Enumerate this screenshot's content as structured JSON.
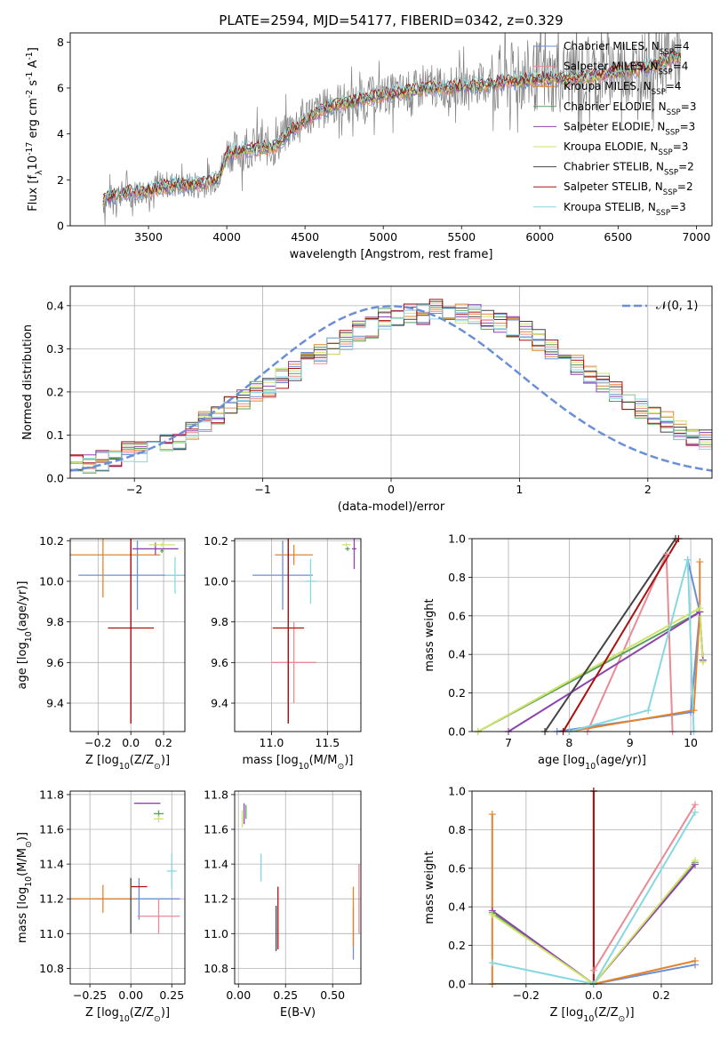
{
  "figure_title": "PLATE=2594, MJD=54177, FIBERID=0342, z=0.329",
  "series_styles": [
    {
      "name": "Chabrier MILES, N$_{SSP}$=4",
      "color": "#6a8fd6"
    },
    {
      "name": "Salpeter MILES, N$_{SSP}$=4",
      "color": "#e98a95"
    },
    {
      "name": "Kroupa MILES, N$_{SSP}$=4",
      "color": "#e3842d"
    },
    {
      "name": "Chabrier ELODIE, N$_{SSP}$=3",
      "color": "#5aa05a"
    },
    {
      "name": "Salpeter ELODIE, N$_{SSP}$=3",
      "color": "#8e44ad"
    },
    {
      "name": "Kroupa ELODIE, N$_{SSP}$=3",
      "color": "#cfe36a"
    },
    {
      "name": "Chabrier STELIB, N$_{SSP}$=2",
      "color": "#444444"
    },
    {
      "name": "Salpeter STELIB, N$_{SSP}$=2",
      "color": "#aa1111"
    },
    {
      "name": "Kroupa STELIB, N$_{SSP}$=3",
      "color": "#86d8e0"
    }
  ],
  "chart_data": [
    {
      "id": "spectrum",
      "type": "line",
      "title": "PLATE=2594, MJD=54177, FIBERID=0342, z=0.329",
      "xlabel": "wavelength [Angstrom, rest frame]",
      "ylabel": "Flux [f$_\\lambda$10$^{-17}$ erg cm$^{-2}$ s$^{-1}$ A$^{-1}$]",
      "xlim": [
        3000,
        7100
      ],
      "ylim": [
        0,
        8.4
      ],
      "xticks": [
        3500,
        4000,
        4500,
        5000,
        5500,
        6000,
        6500,
        7000
      ],
      "yticks": [
        0,
        2,
        4,
        6,
        8
      ],
      "legend": "upper right",
      "data_color": "#808080",
      "data_points": [
        [
          3210,
          1.0
        ],
        [
          3300,
          1.4
        ],
        [
          3400,
          1.4
        ],
        [
          3500,
          1.6
        ],
        [
          3600,
          1.8
        ],
        [
          3700,
          1.8
        ],
        [
          3800,
          1.7
        ],
        [
          3900,
          1.9
        ],
        [
          3950,
          2.2
        ],
        [
          4000,
          3.2
        ],
        [
          4100,
          3.3
        ],
        [
          4200,
          3.5
        ],
        [
          4300,
          3.4
        ],
        [
          4400,
          4.2
        ],
        [
          4500,
          4.8
        ],
        [
          4600,
          5.0
        ],
        [
          4700,
          5.4
        ],
        [
          4800,
          5.3
        ],
        [
          4900,
          5.6
        ],
        [
          5000,
          5.7
        ],
        [
          5100,
          5.8
        ],
        [
          5200,
          5.9
        ],
        [
          5300,
          6.0
        ],
        [
          5400,
          6.0
        ],
        [
          5500,
          6.1
        ],
        [
          5600,
          6.2
        ],
        [
          5700,
          6.3
        ],
        [
          5800,
          6.4
        ],
        [
          5900,
          6.5
        ],
        [
          6000,
          6.5
        ],
        [
          6100,
          6.4
        ],
        [
          6200,
          6.5
        ],
        [
          6300,
          6.6
        ],
        [
          6400,
          6.7
        ],
        [
          6500,
          6.8
        ],
        [
          6600,
          6.8
        ],
        [
          6700,
          7.0
        ],
        [
          6800,
          7.3
        ],
        [
          6900,
          7.5
        ]
      ],
      "model_points": [
        [
          3210,
          1.1
        ],
        [
          3300,
          1.4
        ],
        [
          3400,
          1.5
        ],
        [
          3500,
          1.5
        ],
        [
          3600,
          1.7
        ],
        [
          3700,
          1.8
        ],
        [
          3800,
          1.8
        ],
        [
          3900,
          1.9
        ],
        [
          3950,
          2.1
        ],
        [
          4000,
          3.1
        ],
        [
          4100,
          3.3
        ],
        [
          4200,
          3.4
        ],
        [
          4300,
          3.4
        ],
        [
          4400,
          4.1
        ],
        [
          4500,
          4.6
        ],
        [
          4600,
          5.0
        ],
        [
          4700,
          5.3
        ],
        [
          4800,
          5.4
        ],
        [
          4900,
          5.6
        ],
        [
          5000,
          5.7
        ],
        [
          5100,
          5.8
        ],
        [
          5200,
          5.9
        ],
        [
          5300,
          6.0
        ],
        [
          5400,
          6.0
        ],
        [
          5500,
          6.1
        ],
        [
          5600,
          6.1
        ],
        [
          5700,
          6.2
        ],
        [
          5800,
          6.3
        ],
        [
          5900,
          6.3
        ],
        [
          6000,
          6.4
        ],
        [
          6100,
          6.4
        ],
        [
          6200,
          6.4
        ],
        [
          6300,
          6.5
        ],
        [
          6400,
          6.6
        ],
        [
          6500,
          6.7
        ],
        [
          6600,
          6.8
        ],
        [
          6700,
          6.9
        ],
        [
          6800,
          7.2
        ],
        [
          6900,
          7.4
        ]
      ],
      "series": [
        {
          "name": "Chabrier MILES, N$_{SSP}$=4",
          "color": "#6a8fd6"
        },
        {
          "name": "Salpeter MILES, N$_{SSP}$=4",
          "color": "#e98a95"
        },
        {
          "name": "Kroupa MILES, N$_{SSP}$=4",
          "color": "#e3842d"
        },
        {
          "name": "Chabrier ELODIE, N$_{SSP}$=3",
          "color": "#5aa05a"
        },
        {
          "name": "Salpeter ELODIE, N$_{SSP}$=3",
          "color": "#8e44ad"
        },
        {
          "name": "Kroupa ELODIE, N$_{SSP}$=3",
          "color": "#cfe36a"
        },
        {
          "name": "Chabrier STELIB, N$_{SSP}$=2",
          "color": "#444444"
        },
        {
          "name": "Salpeter STELIB, N$_{SSP}$=2",
          "color": "#aa1111"
        },
        {
          "name": "Kroupa STELIB, N$_{SSP}$=3",
          "color": "#86d8e0"
        }
      ]
    },
    {
      "id": "residuals",
      "type": "line",
      "xlabel": "(data-model)/error",
      "ylabel": "Normed distribution",
      "xlim": [
        -2.5,
        2.5
      ],
      "ylim": [
        0,
        0.445
      ],
      "xticks": [
        -2,
        -1,
        0,
        1,
        2
      ],
      "yticks": [
        0.0,
        0.1,
        0.2,
        0.3,
        0.4
      ],
      "grid": true,
      "legend": "upper right",
      "reference_curve": {
        "name": "$\\mathcal{N}(0,1)$",
        "color": "#6a8fd6",
        "mean": 0,
        "sigma": 1
      },
      "histogram": {
        "bin_width": 0.1,
        "bin_start": -2.5,
        "base_values": [
          0.03,
          0.03,
          0.04,
          0.05,
          0.06,
          0.06,
          0.07,
          0.08,
          0.09,
          0.11,
          0.13,
          0.15,
          0.17,
          0.18,
          0.2,
          0.21,
          0.23,
          0.25,
          0.27,
          0.29,
          0.31,
          0.32,
          0.34,
          0.35,
          0.37,
          0.37,
          0.38,
          0.38,
          0.39,
          0.38,
          0.38,
          0.38,
          0.37,
          0.36,
          0.35,
          0.34,
          0.32,
          0.3,
          0.28,
          0.26,
          0.24,
          0.22,
          0.2,
          0.18,
          0.16,
          0.14,
          0.13,
          0.11,
          0.1,
          0.09
        ]
      }
    },
    {
      "id": "age-vs-Z",
      "type": "scatter",
      "xlabel": "Z [log$_{10}$(Z/Z$_\\odot$)]",
      "ylabel": "age  [log$_{10}$(age/yr)]",
      "xlim": [
        -0.37,
        0.33
      ],
      "ylim": [
        9.26,
        10.21
      ],
      "xticks": [
        -0.2,
        0.0,
        0.2
      ],
      "yticks": [
        9.4,
        9.6,
        9.8,
        10.0,
        10.2
      ],
      "grid": true,
      "points": [
        {
          "series": 0,
          "x": 0.04,
          "xerr": 0.36,
          "y": 10.03,
          "yerr": 0.17
        },
        {
          "series": 1,
          "x": 0.29,
          "xerr": 0.0,
          "y": 9.6,
          "yerr": 0.0
        },
        {
          "series": 2,
          "x": -0.17,
          "xerr": 0.35,
          "y": 10.13,
          "yerr": 0.21
        },
        {
          "series": 3,
          "x": 0.19,
          "xerr": 0.01,
          "y": 10.15,
          "yerr": 0.01
        },
        {
          "series": 4,
          "x": 0.15,
          "xerr": 0.14,
          "y": 10.16,
          "yerr": 0.03
        },
        {
          "series": 5,
          "x": 0.19,
          "xerr": 0.08,
          "y": 10.18,
          "yerr": 0.01
        },
        {
          "series": 6,
          "x": 0.0,
          "xerr": 0.0,
          "y": 9.77,
          "yerr": 0.47
        },
        {
          "series": 7,
          "x": 0.0,
          "xerr": 0.14,
          "y": 9.77,
          "yerr": 0.47
        },
        {
          "series": 8,
          "x": 0.27,
          "xerr": 0.06,
          "y": 10.03,
          "yerr": 0.09
        }
      ]
    },
    {
      "id": "age-vs-mass",
      "type": "scatter",
      "xlabel": "mass [log$_{10}$(M/M$_\\odot$)]",
      "ylabel": "",
      "xlim": [
        10.67,
        11.8
      ],
      "ylim": [
        9.26,
        10.21
      ],
      "xticks": [
        11.0,
        11.5
      ],
      "yticks": [
        9.4,
        9.6,
        9.8,
        10.0,
        10.2
      ],
      "grid": true,
      "points": [
        {
          "series": 0,
          "x": 11.1,
          "xerr": 0.27,
          "y": 10.03,
          "yerr": 0.17
        },
        {
          "series": 1,
          "x": 11.2,
          "xerr": 0.2,
          "y": 9.6,
          "yerr": 0.2
        },
        {
          "series": 2,
          "x": 11.2,
          "xerr": 0.17,
          "y": 10.13,
          "yerr": 0.05
        },
        {
          "series": 3,
          "x": 11.68,
          "xerr": 0.02,
          "y": 10.16,
          "yerr": 0.01
        },
        {
          "series": 4,
          "x": 11.74,
          "xerr": 0.02,
          "y": 10.16,
          "yerr": 0.1
        },
        {
          "series": 5,
          "x": 11.67,
          "xerr": 0.04,
          "y": 10.18,
          "yerr": 0.01
        },
        {
          "series": 6,
          "x": 11.15,
          "xerr": 0.0,
          "y": 9.77,
          "yerr": 0.47
        },
        {
          "series": 7,
          "x": 11.15,
          "xerr": 0.14,
          "y": 9.77,
          "yerr": 0.47
        },
        {
          "series": 8,
          "x": 11.35,
          "xerr": 0.05,
          "y": 10.0,
          "yerr": 0.11
        }
      ]
    },
    {
      "id": "weight-vs-age",
      "type": "line",
      "xlabel": "age  [log$_{10}$(age/yr)]",
      "ylabel": "mass weight",
      "xlim": [
        6.4,
        10.35
      ],
      "ylim": [
        0,
        1.0
      ],
      "xticks": [
        7,
        8,
        9,
        10
      ],
      "yticks": [
        0.0,
        0.2,
        0.4,
        0.6,
        0.8,
        1.0
      ],
      "grid": true,
      "lines": [
        {
          "series": 0,
          "x": [
            7.8,
            10.0,
            10.15,
            9.95
          ],
          "y": [
            0.0,
            0.1,
            0.62,
            0.89
          ]
        },
        {
          "series": 1,
          "x": [
            8.3,
            9.6,
            9.7
          ],
          "y": [
            0.0,
            0.92,
            0.0
          ]
        },
        {
          "series": 2,
          "x": [
            8.0,
            10.05,
            10.15,
            10.15
          ],
          "y": [
            0.0,
            0.11,
            0.62,
            0.88
          ]
        },
        {
          "series": 3,
          "x": [
            6.5,
            10.15,
            10.2
          ],
          "y": [
            0.0,
            0.62,
            0.37
          ]
        },
        {
          "series": 4,
          "x": [
            7.0,
            10.15,
            10.2
          ],
          "y": [
            0.0,
            0.62,
            0.37
          ]
        },
        {
          "series": 5,
          "x": [
            6.5,
            10.15,
            10.2
          ],
          "y": [
            0.0,
            0.64,
            0.36
          ]
        },
        {
          "series": 6,
          "x": [
            7.6,
            9.75
          ],
          "y": [
            0.0,
            1.0
          ]
        },
        {
          "series": 7,
          "x": [
            7.9,
            9.8
          ],
          "y": [
            0.0,
            1.0
          ]
        },
        {
          "series": 8,
          "x": [
            8.0,
            9.3,
            9.95,
            10.05
          ],
          "y": [
            0.0,
            0.11,
            0.89,
            0.0
          ]
        }
      ]
    },
    {
      "id": "mass-vs-Z",
      "type": "scatter",
      "xlabel": "Z [log$_{10}$(Z/Z$_\\odot$)]",
      "ylabel": "mass [log$_{10}$(M/M$_\\odot$)]",
      "xlim": [
        -0.37,
        0.33
      ],
      "ylim": [
        10.71,
        11.82
      ],
      "xticks": [
        -0.25,
        0.0,
        0.25
      ],
      "yticks": [
        10.8,
        11.0,
        11.2,
        11.4,
        11.6,
        11.8
      ],
      "grid": true,
      "points": [
        {
          "series": 0,
          "x": 0.05,
          "xerr": 0.25,
          "y": 11.2,
          "yerr": 0.12
        },
        {
          "series": 1,
          "x": 0.17,
          "xerr": 0.13,
          "y": 11.1,
          "yerr": 0.1
        },
        {
          "series": 2,
          "x": -0.17,
          "xerr": 0.2,
          "y": 11.2,
          "yerr": 0.08
        },
        {
          "series": 3,
          "x": 0.17,
          "xerr": 0.03,
          "y": 11.69,
          "yerr": 0.02
        },
        {
          "series": 4,
          "x": 0.1,
          "xerr": 0.08,
          "y": 11.75,
          "yerr": 0.0
        },
        {
          "series": 5,
          "x": 0.17,
          "xerr": 0.03,
          "y": 11.66,
          "yerr": 0.02
        },
        {
          "series": 6,
          "x": 0.0,
          "xerr": 0.0,
          "y": 11.16,
          "yerr": 0.16
        },
        {
          "series": 7,
          "x": 0.05,
          "xerr": 0.05,
          "y": 11.27,
          "yerr": 0.0
        },
        {
          "series": 8,
          "x": 0.25,
          "xerr": 0.03,
          "y": 11.36,
          "yerr": 0.1
        }
      ]
    },
    {
      "id": "mass-vs-EBV",
      "type": "scatter",
      "xlabel": "E(B-V)",
      "ylabel": "",
      "xlim": [
        -0.02,
        0.65
      ],
      "ylim": [
        10.71,
        11.82
      ],
      "xticks": [
        0.0,
        0.25,
        0.5
      ],
      "yticks": [
        10.8,
        11.0,
        11.2,
        11.4,
        11.6,
        11.8
      ],
      "grid": true,
      "points": [
        {
          "series": 0,
          "x": 0.61,
          "xerr": 0.0,
          "y": 11.0,
          "yerr": 0.15
        },
        {
          "series": 1,
          "x": 0.64,
          "xerr": 0.0,
          "y": 11.2,
          "yerr": 0.2
        },
        {
          "series": 2,
          "x": 0.61,
          "xerr": 0.0,
          "y": 11.1,
          "yerr": 0.17
        },
        {
          "series": 3,
          "x": 0.04,
          "xerr": 0.0,
          "y": 11.7,
          "yerr": 0.04
        },
        {
          "series": 4,
          "x": 0.03,
          "xerr": 0.0,
          "y": 11.69,
          "yerr": 0.06
        },
        {
          "series": 5,
          "x": 0.02,
          "xerr": 0.0,
          "y": 11.66,
          "yerr": 0.05
        },
        {
          "series": 6,
          "x": 0.2,
          "xerr": 0.0,
          "y": 11.03,
          "yerr": 0.13
        },
        {
          "series": 7,
          "x": 0.21,
          "xerr": 0.0,
          "y": 11.09,
          "yerr": 0.18
        },
        {
          "series": 8,
          "x": 0.12,
          "xerr": 0.0,
          "y": 11.38,
          "yerr": 0.08
        }
      ]
    },
    {
      "id": "weight-vs-Z",
      "type": "line",
      "xlabel": "Z [log$_{10}$(Z/Z$_\\odot$)]",
      "ylabel": "mass weight",
      "xlim": [
        -0.36,
        0.35
      ],
      "ylim": [
        0,
        1.0
      ],
      "xticks": [
        -0.2,
        0.0,
        0.2
      ],
      "yticks": [
        0.0,
        0.2,
        0.4,
        0.6,
        0.8,
        1.0
      ],
      "grid": true,
      "lines": [
        {
          "series": 0,
          "x": [
            -0.3,
            0.0,
            0.3
          ],
          "y": [
            0.0,
            0.0,
            0.1
          ]
        },
        {
          "series": 1,
          "x": [
            0.0,
            0.0,
            0.3
          ],
          "y": [
            0.0,
            0.07,
            0.93
          ]
        },
        {
          "series": 2,
          "x": [
            -0.3,
            -0.3,
            0.0,
            0.3
          ],
          "y": [
            0.88,
            0.0,
            0.0,
            0.12
          ]
        },
        {
          "series": 3,
          "x": [
            -0.3,
            0.0,
            0.3
          ],
          "y": [
            0.37,
            0.0,
            0.63
          ]
        },
        {
          "series": 4,
          "x": [
            -0.3,
            0.0,
            0.3
          ],
          "y": [
            0.38,
            0.0,
            0.62
          ]
        },
        {
          "series": 5,
          "x": [
            -0.3,
            0.0,
            0.3
          ],
          "y": [
            0.36,
            0.0,
            0.64
          ]
        },
        {
          "series": 6,
          "x": [
            0.0,
            0.0
          ],
          "y": [
            0.0,
            1.0
          ]
        },
        {
          "series": 7,
          "x": [
            0.0,
            0.0
          ],
          "y": [
            0.0,
            1.0
          ]
        },
        {
          "series": 8,
          "x": [
            -0.3,
            0.0,
            0.3
          ],
          "y": [
            0.11,
            0.0,
            0.89
          ]
        }
      ]
    }
  ]
}
